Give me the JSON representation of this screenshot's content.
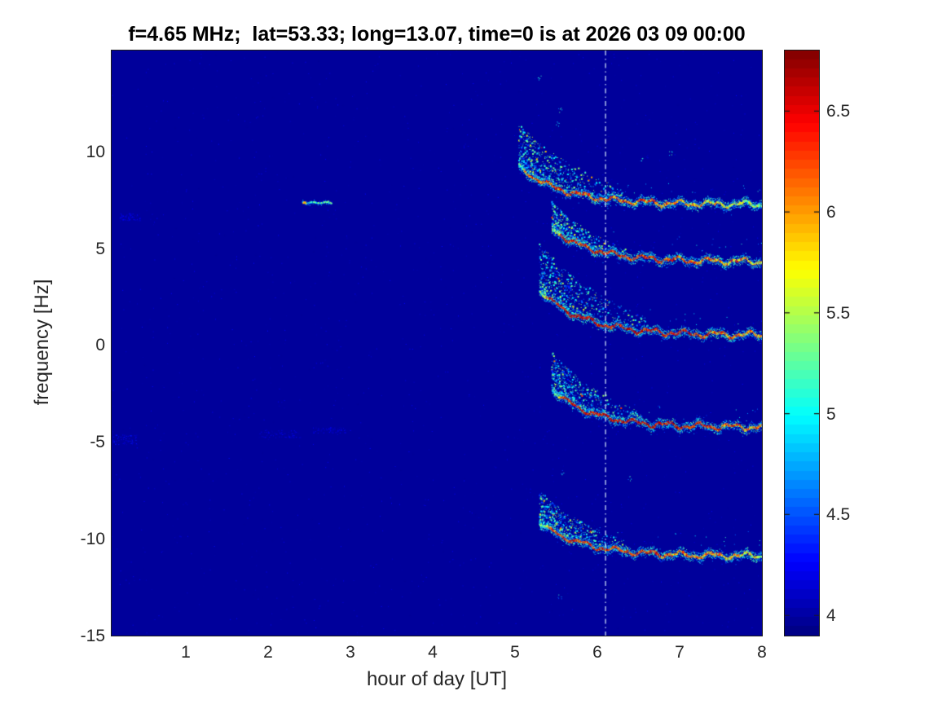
{
  "title": "f=4.65 MHz;  lat=53.33; long=13.07, time=0 is at 2026 03 09 00:00",
  "chart_data": {
    "type": "heatmap",
    "title": "f=4.65 MHz;  lat=53.33; long=13.07, time=0 is at 2026 03 09 00:00",
    "xlabel": "hour of day [UT]",
    "ylabel": "frequency [Hz]",
    "x_ticks": [
      1,
      2,
      3,
      4,
      5,
      6,
      7,
      8
    ],
    "y_ticks": [
      -15,
      -10,
      -5,
      0,
      5,
      10
    ],
    "xlim": [
      0.1,
      8.0
    ],
    "ylim": [
      -15,
      15.2
    ],
    "grid": false,
    "colorbar": {
      "colormap": "jet",
      "levels": 64,
      "range": [
        3.9,
        6.8
      ],
      "ticks": [
        4,
        4.5,
        5,
        5.5,
        6,
        6.5
      ]
    },
    "noise": {
      "background_value": 3.98,
      "speckle_density": 0.003,
      "speckle_values": [
        3.95,
        4.3
      ]
    },
    "marker_line": {
      "x": 6.1,
      "style": "dash-dot",
      "color": "#d8ecff"
    },
    "bands": [
      {
        "name": "trace-plus7",
        "x_start": 5.05,
        "x_end": 8.0,
        "y_start": 9.2,
        "y_end": 7.25,
        "tau": 0.55,
        "peak_value": 6.1,
        "cloud_height": 1.6,
        "cloud_span": 1.3
      },
      {
        "name": "trace-plus4",
        "x_start": 5.45,
        "x_end": 8.0,
        "y_start": 6.0,
        "y_end": 4.3,
        "tau": 0.5,
        "peak_value": 6.3,
        "cloud_height": 1.0,
        "cloud_span": 0.9
      },
      {
        "name": "trace-zero",
        "x_start": 5.3,
        "x_end": 8.0,
        "y_start": 2.8,
        "y_end": 0.5,
        "tau": 0.55,
        "peak_value": 6.5,
        "cloud_height": 1.8,
        "cloud_span": 1.3
      },
      {
        "name": "trace-minus4",
        "x_start": 5.45,
        "x_end": 8.0,
        "y_start": -2.3,
        "y_end": -4.25,
        "tau": 0.5,
        "peak_value": 6.5,
        "cloud_height": 1.4,
        "cloud_span": 1.1
      },
      {
        "name": "trace-minus10",
        "x_start": 5.3,
        "x_end": 8.0,
        "y_start": -9.2,
        "y_end": -10.9,
        "tau": 0.55,
        "peak_value": 6.2,
        "cloud_height": 1.2,
        "cloud_span": 1.1
      }
    ],
    "pre_event_streak": {
      "x_start": 2.42,
      "x_end": 2.78,
      "y": 7.35,
      "value": 5.4,
      "hot_tip_value": 6.2
    },
    "faint_patches": [
      {
        "x": 0.12,
        "y": -4.9,
        "w": 0.3,
        "h": 0.5,
        "value": 4.35
      },
      {
        "x": 0.2,
        "y": 6.6,
        "w": 0.25,
        "h": 0.4,
        "value": 4.3
      },
      {
        "x": 1.9,
        "y": -4.6,
        "w": 0.5,
        "h": 0.4,
        "value": 4.25
      },
      {
        "x": 2.55,
        "y": -4.4,
        "w": 0.4,
        "h": 0.3,
        "value": 4.25
      }
    ],
    "stray_dots": [
      {
        "x": 5.55,
        "y": 12.1
      },
      {
        "x": 5.52,
        "y": 11.4
      },
      {
        "x": 5.58,
        "y": -6.6
      },
      {
        "x": 5.55,
        "y": -13.0
      },
      {
        "x": 6.55,
        "y": 9.6
      },
      {
        "x": 6.9,
        "y": 9.9
      },
      {
        "x": 5.3,
        "y": 13.8
      },
      {
        "x": 6.4,
        "y": -6.9
      }
    ]
  }
}
